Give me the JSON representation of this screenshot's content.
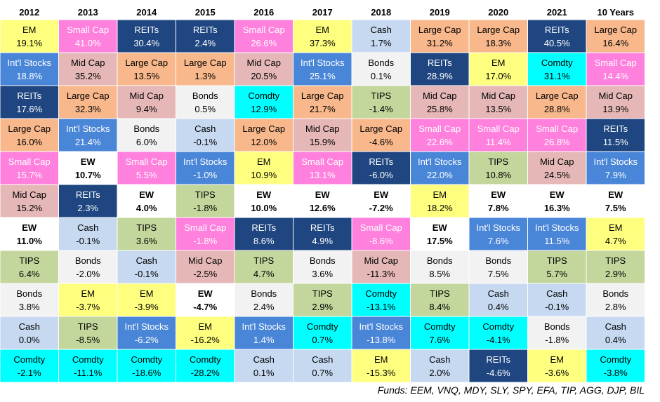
{
  "chart_data": {
    "type": "table",
    "title": "",
    "columns": [
      "2012",
      "2013",
      "2014",
      "2015",
      "2016",
      "2017",
      "2018",
      "2019",
      "2020",
      "2021",
      "10 Years"
    ],
    "rows": [
      [
        [
          "EM",
          "19.1%"
        ],
        [
          "Small Cap",
          "41.0%"
        ],
        [
          "REITs",
          "30.4%"
        ],
        [
          "REITs",
          "2.4%"
        ],
        [
          "Small Cap",
          "26.6%"
        ],
        [
          "EM",
          "37.3%"
        ],
        [
          "Cash",
          "1.7%"
        ],
        [
          "Large Cap",
          "31.2%"
        ],
        [
          "Large Cap",
          "18.3%"
        ],
        [
          "REITs",
          "40.5%"
        ],
        [
          "Large Cap",
          "16.4%"
        ]
      ],
      [
        [
          "Int'l Stocks",
          "18.8%"
        ],
        [
          "Mid Cap",
          "35.2%"
        ],
        [
          "Large Cap",
          "13.5%"
        ],
        [
          "Large Cap",
          "1.3%"
        ],
        [
          "Mid Cap",
          "20.5%"
        ],
        [
          "Int'l Stocks",
          "25.1%"
        ],
        [
          "Bonds",
          "0.1%"
        ],
        [
          "REITs",
          "28.9%"
        ],
        [
          "EM",
          "17.0%"
        ],
        [
          "Comdty",
          "31.1%"
        ],
        [
          "Small Cap",
          "14.4%"
        ]
      ],
      [
        [
          "REITs",
          "17.6%"
        ],
        [
          "Large Cap",
          "32.3%"
        ],
        [
          "Mid Cap",
          "9.4%"
        ],
        [
          "Bonds",
          "0.5%"
        ],
        [
          "Comdty",
          "12.9%"
        ],
        [
          "Large Cap",
          "21.7%"
        ],
        [
          "TIPS",
          "-1.4%"
        ],
        [
          "Mid Cap",
          "25.8%"
        ],
        [
          "Mid Cap",
          "13.5%"
        ],
        [
          "Large Cap",
          "28.8%"
        ],
        [
          "Mid Cap",
          "13.9%"
        ]
      ],
      [
        [
          "Large Cap",
          "16.0%"
        ],
        [
          "Int'l Stocks",
          "21.4%"
        ],
        [
          "Bonds",
          "6.0%"
        ],
        [
          "Cash",
          "-0.1%"
        ],
        [
          "Large Cap",
          "12.0%"
        ],
        [
          "Mid Cap",
          "15.9%"
        ],
        [
          "Large Cap",
          "-4.6%"
        ],
        [
          "Small Cap",
          "22.6%"
        ],
        [
          "Small Cap",
          "11.4%"
        ],
        [
          "Small Cap",
          "26.8%"
        ],
        [
          "REITs",
          "11.5%"
        ]
      ],
      [
        [
          "Small Cap",
          "15.7%"
        ],
        [
          "EW",
          "10.7%"
        ],
        [
          "Small Cap",
          "5.5%"
        ],
        [
          "Int'l Stocks",
          "-1.0%"
        ],
        [
          "EM",
          "10.9%"
        ],
        [
          "Small Cap",
          "13.1%"
        ],
        [
          "REITs",
          "-6.0%"
        ],
        [
          "Int'l Stocks",
          "22.0%"
        ],
        [
          "TIPS",
          "10.8%"
        ],
        [
          "Mid Cap",
          "24.5%"
        ],
        [
          "Int'l Stocks",
          "7.9%"
        ]
      ],
      [
        [
          "Mid Cap",
          "15.2%"
        ],
        [
          "REITs",
          "2.3%"
        ],
        [
          "EW",
          "4.0%"
        ],
        [
          "TIPS",
          "-1.8%"
        ],
        [
          "EW",
          "10.0%"
        ],
        [
          "EW",
          "12.6%"
        ],
        [
          "EW",
          "-7.2%"
        ],
        [
          "EM",
          "18.2%"
        ],
        [
          "EW",
          "7.8%"
        ],
        [
          "EW",
          "16.3%"
        ],
        [
          "EW",
          "7.5%"
        ]
      ],
      [
        [
          "EW",
          "11.0%"
        ],
        [
          "Cash",
          "-0.1%"
        ],
        [
          "TIPS",
          "3.6%"
        ],
        [
          "Small Cap",
          "-1.8%"
        ],
        [
          "REITs",
          "8.6%"
        ],
        [
          "REITs",
          "4.9%"
        ],
        [
          "Small Cap",
          "-8.6%"
        ],
        [
          "EW",
          "17.5%"
        ],
        [
          "Int'l Stocks",
          "7.6%"
        ],
        [
          "Int'l Stocks",
          "11.5%"
        ],
        [
          "EM",
          "4.7%"
        ]
      ],
      [
        [
          "TIPS",
          "6.4%"
        ],
        [
          "Bonds",
          "-2.0%"
        ],
        [
          "Cash",
          "-0.1%"
        ],
        [
          "Mid Cap",
          "-2.5%"
        ],
        [
          "TIPS",
          "4.7%"
        ],
        [
          "Bonds",
          "3.6%"
        ],
        [
          "Mid Cap",
          "-11.3%"
        ],
        [
          "Bonds",
          "8.5%"
        ],
        [
          "Bonds",
          "7.5%"
        ],
        [
          "TIPS",
          "5.7%"
        ],
        [
          "TIPS",
          "2.9%"
        ]
      ],
      [
        [
          "Bonds",
          "3.8%"
        ],
        [
          "EM",
          "-3.7%"
        ],
        [
          "EM",
          "-3.9%"
        ],
        [
          "EW",
          "-4.7%"
        ],
        [
          "Bonds",
          "2.4%"
        ],
        [
          "TIPS",
          "2.9%"
        ],
        [
          "Comdty",
          "-13.1%"
        ],
        [
          "TIPS",
          "8.4%"
        ],
        [
          "Cash",
          "0.4%"
        ],
        [
          "Cash",
          "-0.1%"
        ],
        [
          "Bonds",
          "2.8%"
        ]
      ],
      [
        [
          "Cash",
          "0.0%"
        ],
        [
          "TIPS",
          "-8.5%"
        ],
        [
          "Int'l Stocks",
          "-6.2%"
        ],
        [
          "EM",
          "-16.2%"
        ],
        [
          "Int'l Stocks",
          "1.4%"
        ],
        [
          "Comdty",
          "0.7%"
        ],
        [
          "Int'l Stocks",
          "-13.8%"
        ],
        [
          "Comdty",
          "7.6%"
        ],
        [
          "Comdty",
          "-4.1%"
        ],
        [
          "Bonds",
          "-1.8%"
        ],
        [
          "Cash",
          "0.4%"
        ]
      ],
      [
        [
          "Comdty",
          "-2.1%"
        ],
        [
          "Comdty",
          "-11.1%"
        ],
        [
          "Comdty",
          "-18.6%"
        ],
        [
          "Comdty",
          "-28.2%"
        ],
        [
          "Cash",
          "0.1%"
        ],
        [
          "Cash",
          "0.7%"
        ],
        [
          "EM",
          "-15.3%"
        ],
        [
          "Cash",
          "2.0%"
        ],
        [
          "REITs",
          "-4.6%"
        ],
        [
          "EM",
          "-3.6%"
        ],
        [
          "Comdty",
          "-3.8%"
        ]
      ]
    ],
    "asset_colors": {
      "EM": {
        "fill": "#FFFF7F",
        "text": "#000000"
      },
      "Small Cap": {
        "fill": "#FF80DD",
        "text": "#FFFFFF"
      },
      "REITs": {
        "fill": "#1F4680",
        "text": "#FFFFFF"
      },
      "Cash": {
        "fill": "#C6D9F0",
        "text": "#000000"
      },
      "Large Cap": {
        "fill": "#F8B88B",
        "text": "#000000"
      },
      "Int'l Stocks": {
        "fill": "#4A86D8",
        "text": "#FFFFFF"
      },
      "Mid Cap": {
        "fill": "#E5B8B7",
        "text": "#000000"
      },
      "Bonds": {
        "fill": "#F2F2F2",
        "text": "#000000"
      },
      "Comdty": {
        "fill": "#00FFFF",
        "text": "#000000"
      },
      "TIPS": {
        "fill": "#C3D69B",
        "text": "#000000"
      },
      "EW": {
        "fill": "#FFFFFF",
        "text": "#000000",
        "bold": true
      }
    },
    "footnote": "Funds: EEM, VNQ, MDY, SLY, SPY, EFA, TIP, AGG, DJP, BIL"
  }
}
